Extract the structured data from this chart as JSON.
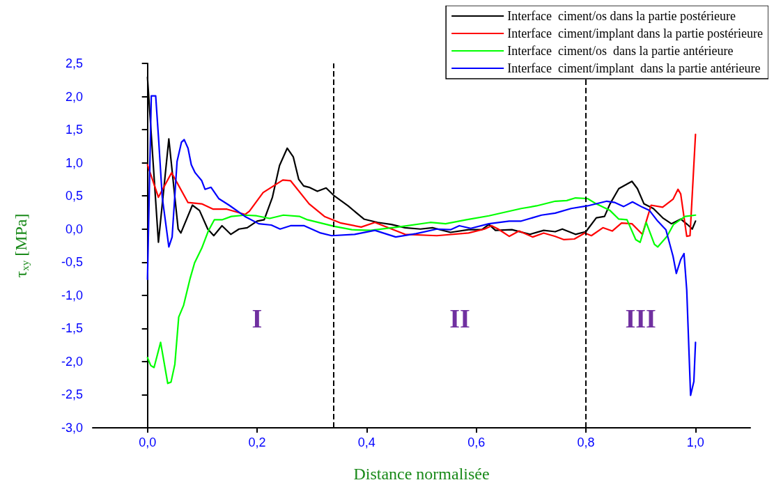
{
  "chart_data": {
    "type": "line",
    "xlabel": "Distance normalisée",
    "ylabel": "τ$_{xy}$ [MPa]",
    "xlim": [
      -0.1,
      1.1
    ],
    "xticks": [
      {
        "value": 0,
        "label": "0,0"
      },
      {
        "value": 0.2,
        "label": "0,2"
      },
      {
        "value": 0.4,
        "label": "0,4"
      },
      {
        "value": 0.6,
        "label": "0,6"
      },
      {
        "value": 0.8,
        "label": "0,8"
      },
      {
        "value": 1,
        "label": "1,0"
      }
    ],
    "ylim": [
      -3,
      2.5
    ],
    "yticks": [
      {
        "value": -3,
        "label": "-3,0"
      },
      {
        "value": -2.5,
        "label": "-2,5"
      },
      {
        "value": -2,
        "label": "-2,0"
      },
      {
        "value": -1.5,
        "label": "-1,5"
      },
      {
        "value": -1,
        "label": "-1,0"
      },
      {
        "value": -0.5,
        "label": "-0,5"
      },
      {
        "value": 0,
        "label": "0,0"
      },
      {
        "value": 0.5,
        "label": "0,5"
      },
      {
        "value": 1,
        "label": "1,0"
      },
      {
        "value": 1.5,
        "label": "1,5"
      },
      {
        "value": 2,
        "label": "2,0"
      },
      {
        "value": 2.5,
        "label": "2,5"
      }
    ],
    "grid": false,
    "legend": "top right",
    "marker": "none",
    "line_style": "solid",
    "series": [
      {
        "name": "Interface  ciment/os dans la partie postérieure",
        "color": "#000000",
        "x": [
          0,
          0.02,
          0.039,
          0.056,
          0.061,
          0.082,
          0.095,
          0.11,
          0.121,
          0.136,
          0.152,
          0.167,
          0.182,
          0.2,
          0.213,
          0.228,
          0.241,
          0.255,
          0.266,
          0.276,
          0.285,
          0.295,
          0.31,
          0.326,
          0.341,
          0.366,
          0.395,
          0.42,
          0.445,
          0.47,
          0.498,
          0.52,
          0.553,
          0.586,
          0.61,
          0.623,
          0.635,
          0.665,
          0.698,
          0.723,
          0.744,
          0.757,
          0.781,
          0.8,
          0.819,
          0.834,
          0.844,
          0.86,
          0.884,
          0.894,
          0.906,
          0.923,
          0.94,
          0.956,
          0.973,
          0.985,
          0.994,
          1.0
        ],
        "values": [
          2.29,
          -0.2,
          1.36,
          0.0,
          -0.06,
          0.36,
          0.28,
          0.0,
          -0.1,
          0.05,
          -0.08,
          0.0,
          0.02,
          0.12,
          0.14,
          0.48,
          0.96,
          1.22,
          1.09,
          0.75,
          0.65,
          0.63,
          0.57,
          0.62,
          0.5,
          0.35,
          0.15,
          0.1,
          0.07,
          0.02,
          0.0,
          0.02,
          -0.05,
          -0.01,
          -0.01,
          0.07,
          -0.02,
          -0.01,
          -0.08,
          -0.02,
          -0.04,
          0.0,
          -0.08,
          -0.04,
          0.17,
          0.19,
          0.38,
          0.61,
          0.72,
          0.61,
          0.38,
          0.31,
          0.17,
          0.08,
          0.15,
          0.07,
          0.0,
          0.12
        ]
      },
      {
        "name": "Interface  ciment/implant dans la partie postérieure",
        "color": "#ff0000",
        "x": [
          0,
          0.02,
          0.044,
          0.074,
          0.099,
          0.12,
          0.145,
          0.178,
          0.186,
          0.211,
          0.247,
          0.261,
          0.295,
          0.323,
          0.353,
          0.39,
          0.415,
          0.47,
          0.528,
          0.586,
          0.615,
          0.628,
          0.64,
          0.66,
          0.678,
          0.703,
          0.723,
          0.744,
          0.76,
          0.779,
          0.798,
          0.81,
          0.831,
          0.848,
          0.865,
          0.884,
          0.903,
          0.919,
          0.94,
          0.959,
          0.968,
          0.973,
          0.984,
          0.99,
          1.0
        ],
        "values": [
          0.97,
          0.48,
          0.85,
          0.4,
          0.38,
          0.3,
          0.3,
          0.22,
          0.27,
          0.55,
          0.74,
          0.73,
          0.38,
          0.19,
          0.09,
          0.03,
          0.1,
          -0.08,
          -0.1,
          -0.06,
          0.0,
          0.05,
          0.0,
          -0.11,
          -0.03,
          -0.12,
          -0.06,
          -0.11,
          -0.16,
          -0.15,
          -0.06,
          -0.1,
          0.02,
          -0.03,
          0.09,
          0.08,
          -0.08,
          0.36,
          0.33,
          0.45,
          0.6,
          0.53,
          -0.11,
          -0.1,
          1.43
        ]
      },
      {
        "name": "Interface  ciment/os  dans la partie antérieure",
        "color": "#00ff00",
        "x": [
          0,
          0.006,
          0.012,
          0.024,
          0.037,
          0.043,
          0.05,
          0.057,
          0.066,
          0.078,
          0.086,
          0.099,
          0.111,
          0.122,
          0.136,
          0.153,
          0.178,
          0.199,
          0.223,
          0.248,
          0.278,
          0.292,
          0.341,
          0.373,
          0.407,
          0.457,
          0.516,
          0.544,
          0.582,
          0.623,
          0.682,
          0.71,
          0.744,
          0.765,
          0.781,
          0.803,
          0.819,
          0.844,
          0.86,
          0.875,
          0.891,
          0.899,
          0.91,
          0.925,
          0.931,
          0.948,
          0.96,
          0.981,
          1.0
        ],
        "values": [
          -1.94,
          -2.06,
          -2.09,
          -1.71,
          -2.33,
          -2.31,
          -2.04,
          -1.33,
          -1.15,
          -0.74,
          -0.51,
          -0.29,
          -0.03,
          0.14,
          0.14,
          0.19,
          0.21,
          0.2,
          0.16,
          0.21,
          0.19,
          0.14,
          0.04,
          -0.01,
          -0.02,
          0.03,
          0.1,
          0.08,
          0.14,
          0.2,
          0.31,
          0.35,
          0.42,
          0.43,
          0.47,
          0.46,
          0.38,
          0.28,
          0.15,
          0.14,
          -0.16,
          -0.2,
          0.1,
          -0.23,
          -0.27,
          -0.11,
          0.07,
          0.19,
          0.21
        ]
      },
      {
        "name": "Interface  ciment/implant  dans la partie antérieure",
        "color": "#0000ff",
        "x": [
          0,
          0.007,
          0.015,
          0.02,
          0.027,
          0.039,
          0.045,
          0.054,
          0.062,
          0.067,
          0.074,
          0.08,
          0.087,
          0.099,
          0.105,
          0.116,
          0.13,
          0.149,
          0.178,
          0.203,
          0.226,
          0.242,
          0.261,
          0.286,
          0.316,
          0.336,
          0.378,
          0.415,
          0.453,
          0.49,
          0.528,
          0.553,
          0.569,
          0.59,
          0.623,
          0.66,
          0.682,
          0.719,
          0.744,
          0.773,
          0.803,
          0.838,
          0.853,
          0.869,
          0.885,
          0.903,
          0.916,
          0.931,
          0.946,
          0.959,
          0.965,
          0.973,
          0.979,
          0.984,
          0.991,
          0.997,
          1.0
        ],
        "values": [
          -0.76,
          2.01,
          2.01,
          1.4,
          0.48,
          -0.27,
          -0.12,
          1.02,
          1.31,
          1.35,
          1.22,
          0.97,
          0.85,
          0.73,
          0.6,
          0.63,
          0.46,
          0.36,
          0.19,
          0.08,
          0.06,
          0.0,
          0.05,
          0.05,
          -0.06,
          -0.1,
          -0.08,
          -0.02,
          -0.12,
          -0.07,
          0.0,
          -0.01,
          0.05,
          0.01,
          0.08,
          0.12,
          0.12,
          0.21,
          0.24,
          0.31,
          0.35,
          0.42,
          0.4,
          0.34,
          0.41,
          0.33,
          0.28,
          0.12,
          -0.01,
          -0.41,
          -0.67,
          -0.46,
          -0.37,
          -0.92,
          -2.51,
          -2.3,
          -1.71
        ]
      }
    ],
    "ref_lines": [
      {
        "axis": "x",
        "value": 0.34,
        "color": "#000000",
        "line_style": "dashed"
      },
      {
        "axis": "x",
        "value": 0.8,
        "color": "#000000",
        "line_style": "dashed"
      }
    ],
    "annotations": [
      "I",
      "II",
      "III"
    ]
  }
}
